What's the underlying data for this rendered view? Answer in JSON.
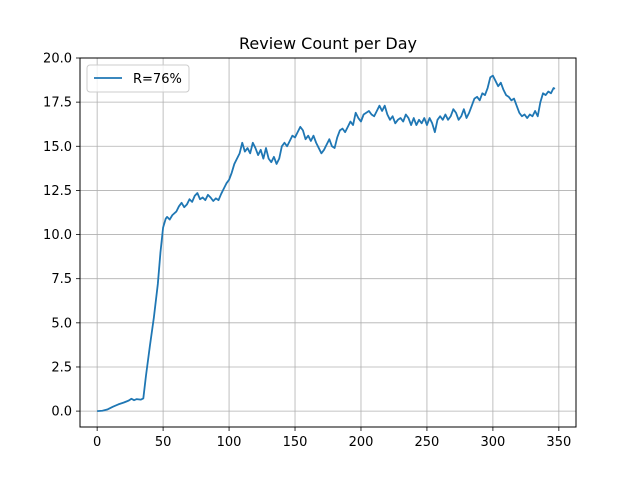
{
  "chart_data": {
    "type": "line",
    "title": "Review Count per Day",
    "xlabel": "",
    "ylabel": "",
    "xlim": [
      -13,
      363
    ],
    "ylim": [
      -0.9,
      20.0
    ],
    "xticks": [
      0,
      50,
      100,
      150,
      200,
      250,
      300,
      350
    ],
    "yticks": [
      0,
      2.5,
      5,
      7.5,
      10,
      12.5,
      15,
      17.5,
      20
    ],
    "ytick_labels": [
      "0.0",
      "2.5",
      "5.0",
      "7.5",
      "10.0",
      "12.5",
      "15.0",
      "17.5",
      "20.0"
    ],
    "grid": true,
    "legend": {
      "placement": "top-left",
      "entries": [
        "R=76%"
      ]
    },
    "series": [
      {
        "name": "R=76%",
        "color": "#1f77b4",
        "points": [
          [
            0,
            0.0
          ],
          [
            4,
            0.02
          ],
          [
            8,
            0.1
          ],
          [
            12,
            0.25
          ],
          [
            16,
            0.38
          ],
          [
            20,
            0.48
          ],
          [
            24,
            0.6
          ],
          [
            26,
            0.7
          ],
          [
            28,
            0.62
          ],
          [
            30,
            0.68
          ],
          [
            33,
            0.65
          ],
          [
            35,
            0.72
          ],
          [
            37,
            2.0
          ],
          [
            40,
            3.7
          ],
          [
            43,
            5.3
          ],
          [
            46,
            7.2
          ],
          [
            48,
            9.0
          ],
          [
            50,
            10.4
          ],
          [
            52,
            10.9
          ],
          [
            53,
            11.0
          ],
          [
            55,
            10.85
          ],
          [
            57,
            11.1
          ],
          [
            60,
            11.3
          ],
          [
            62,
            11.6
          ],
          [
            64,
            11.8
          ],
          [
            66,
            11.55
          ],
          [
            68,
            11.7
          ],
          [
            70,
            12.0
          ],
          [
            72,
            11.85
          ],
          [
            74,
            12.2
          ],
          [
            76,
            12.35
          ],
          [
            78,
            12.0
          ],
          [
            80,
            12.1
          ],
          [
            82,
            11.95
          ],
          [
            84,
            12.25
          ],
          [
            86,
            12.1
          ],
          [
            88,
            11.9
          ],
          [
            90,
            12.05
          ],
          [
            92,
            11.95
          ],
          [
            94,
            12.3
          ],
          [
            96,
            12.6
          ],
          [
            98,
            12.9
          ],
          [
            100,
            13.1
          ],
          [
            102,
            13.5
          ],
          [
            104,
            14.0
          ],
          [
            106,
            14.3
          ],
          [
            108,
            14.6
          ],
          [
            110,
            15.2
          ],
          [
            112,
            14.7
          ],
          [
            114,
            14.9
          ],
          [
            116,
            14.6
          ],
          [
            118,
            15.2
          ],
          [
            120,
            14.9
          ],
          [
            122,
            14.5
          ],
          [
            124,
            14.8
          ],
          [
            126,
            14.3
          ],
          [
            128,
            14.9
          ],
          [
            130,
            14.3
          ],
          [
            132,
            14.1
          ],
          [
            134,
            14.4
          ],
          [
            136,
            14.0
          ],
          [
            138,
            14.3
          ],
          [
            140,
            15.0
          ],
          [
            142,
            15.2
          ],
          [
            144,
            15.0
          ],
          [
            146,
            15.3
          ],
          [
            148,
            15.6
          ],
          [
            150,
            15.5
          ],
          [
            152,
            15.8
          ],
          [
            154,
            16.1
          ],
          [
            156,
            15.9
          ],
          [
            158,
            15.4
          ],
          [
            160,
            15.6
          ],
          [
            162,
            15.3
          ],
          [
            164,
            15.6
          ],
          [
            166,
            15.2
          ],
          [
            168,
            14.9
          ],
          [
            170,
            14.6
          ],
          [
            172,
            14.8
          ],
          [
            174,
            15.1
          ],
          [
            176,
            15.4
          ],
          [
            178,
            15.0
          ],
          [
            180,
            14.9
          ],
          [
            182,
            15.5
          ],
          [
            184,
            15.9
          ],
          [
            186,
            16.0
          ],
          [
            188,
            15.8
          ],
          [
            190,
            16.1
          ],
          [
            192,
            16.4
          ],
          [
            194,
            16.2
          ],
          [
            196,
            16.9
          ],
          [
            198,
            16.6
          ],
          [
            200,
            16.4
          ],
          [
            202,
            16.8
          ],
          [
            204,
            16.9
          ],
          [
            206,
            17.0
          ],
          [
            208,
            16.8
          ],
          [
            210,
            16.7
          ],
          [
            212,
            17.0
          ],
          [
            214,
            17.3
          ],
          [
            216,
            17.0
          ],
          [
            218,
            17.3
          ],
          [
            220,
            16.8
          ],
          [
            222,
            16.5
          ],
          [
            224,
            16.7
          ],
          [
            226,
            16.3
          ],
          [
            228,
            16.5
          ],
          [
            230,
            16.6
          ],
          [
            232,
            16.4
          ],
          [
            234,
            16.8
          ],
          [
            236,
            16.6
          ],
          [
            238,
            16.2
          ],
          [
            240,
            16.6
          ],
          [
            242,
            16.2
          ],
          [
            244,
            16.5
          ],
          [
            246,
            16.3
          ],
          [
            248,
            16.6
          ],
          [
            250,
            16.2
          ],
          [
            252,
            16.6
          ],
          [
            254,
            16.3
          ],
          [
            256,
            15.8
          ],
          [
            258,
            16.5
          ],
          [
            260,
            16.7
          ],
          [
            262,
            16.5
          ],
          [
            264,
            16.8
          ],
          [
            266,
            16.5
          ],
          [
            268,
            16.7
          ],
          [
            270,
            17.1
          ],
          [
            272,
            16.9
          ],
          [
            274,
            16.5
          ],
          [
            276,
            16.7
          ],
          [
            278,
            17.1
          ],
          [
            280,
            16.6
          ],
          [
            282,
            16.9
          ],
          [
            284,
            17.3
          ],
          [
            286,
            17.7
          ],
          [
            288,
            17.8
          ],
          [
            290,
            17.6
          ],
          [
            292,
            18.0
          ],
          [
            294,
            17.9
          ],
          [
            296,
            18.3
          ],
          [
            298,
            18.9
          ],
          [
            300,
            19.0
          ],
          [
            302,
            18.7
          ],
          [
            304,
            18.4
          ],
          [
            306,
            18.6
          ],
          [
            308,
            18.2
          ],
          [
            310,
            17.9
          ],
          [
            312,
            17.8
          ],
          [
            314,
            17.6
          ],
          [
            316,
            17.7
          ],
          [
            318,
            17.3
          ],
          [
            320,
            16.9
          ],
          [
            322,
            16.7
          ],
          [
            324,
            16.8
          ],
          [
            326,
            16.6
          ],
          [
            328,
            16.8
          ],
          [
            330,
            16.7
          ],
          [
            332,
            17.0
          ],
          [
            334,
            16.7
          ],
          [
            336,
            17.5
          ],
          [
            338,
            18.0
          ],
          [
            340,
            17.9
          ],
          [
            342,
            18.1
          ],
          [
            344,
            18.0
          ],
          [
            346,
            18.3
          ],
          [
            347,
            18.25
          ]
        ]
      }
    ]
  }
}
